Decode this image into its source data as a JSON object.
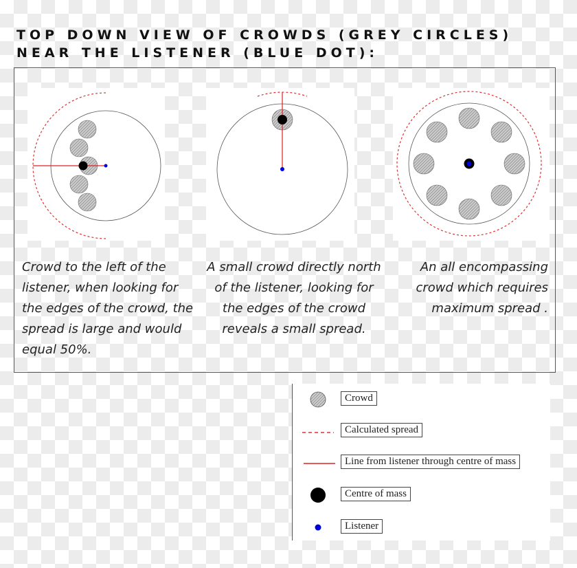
{
  "title": {
    "line1": "TOP DOWN VIEW OF CROWDS (GREY CIRCLES)",
    "line2": "NEAR THE LISTENER (BLUE DOT):"
  },
  "panels": [
    {
      "caption": "Crowd to the left of the listener, when looking for the edges of the crowd, the spread is large and would equal 50%."
    },
    {
      "caption": "A small crowd directly north of the listener, looking for the edges of the crowd reveals a small spread."
    },
    {
      "caption": "An all encompassing crowd which requires maximum spread ."
    }
  ],
  "legend": {
    "items": [
      {
        "label": "Crowd",
        "icon": "hatched-circle"
      },
      {
        "label": "Calculated spread",
        "icon": "red-dashed-line"
      },
      {
        "label": "Line from listener through centre of mass",
        "icon": "red-solid-line"
      },
      {
        "label": "Centre of mass",
        "icon": "black-dot"
      },
      {
        "label": "Listener",
        "icon": "blue-dot"
      }
    ]
  },
  "colors": {
    "spread": "#e03030",
    "line": "#e02020",
    "listener": "#0000dd",
    "centre_of_mass": "#000000",
    "crowd": "#999999"
  }
}
